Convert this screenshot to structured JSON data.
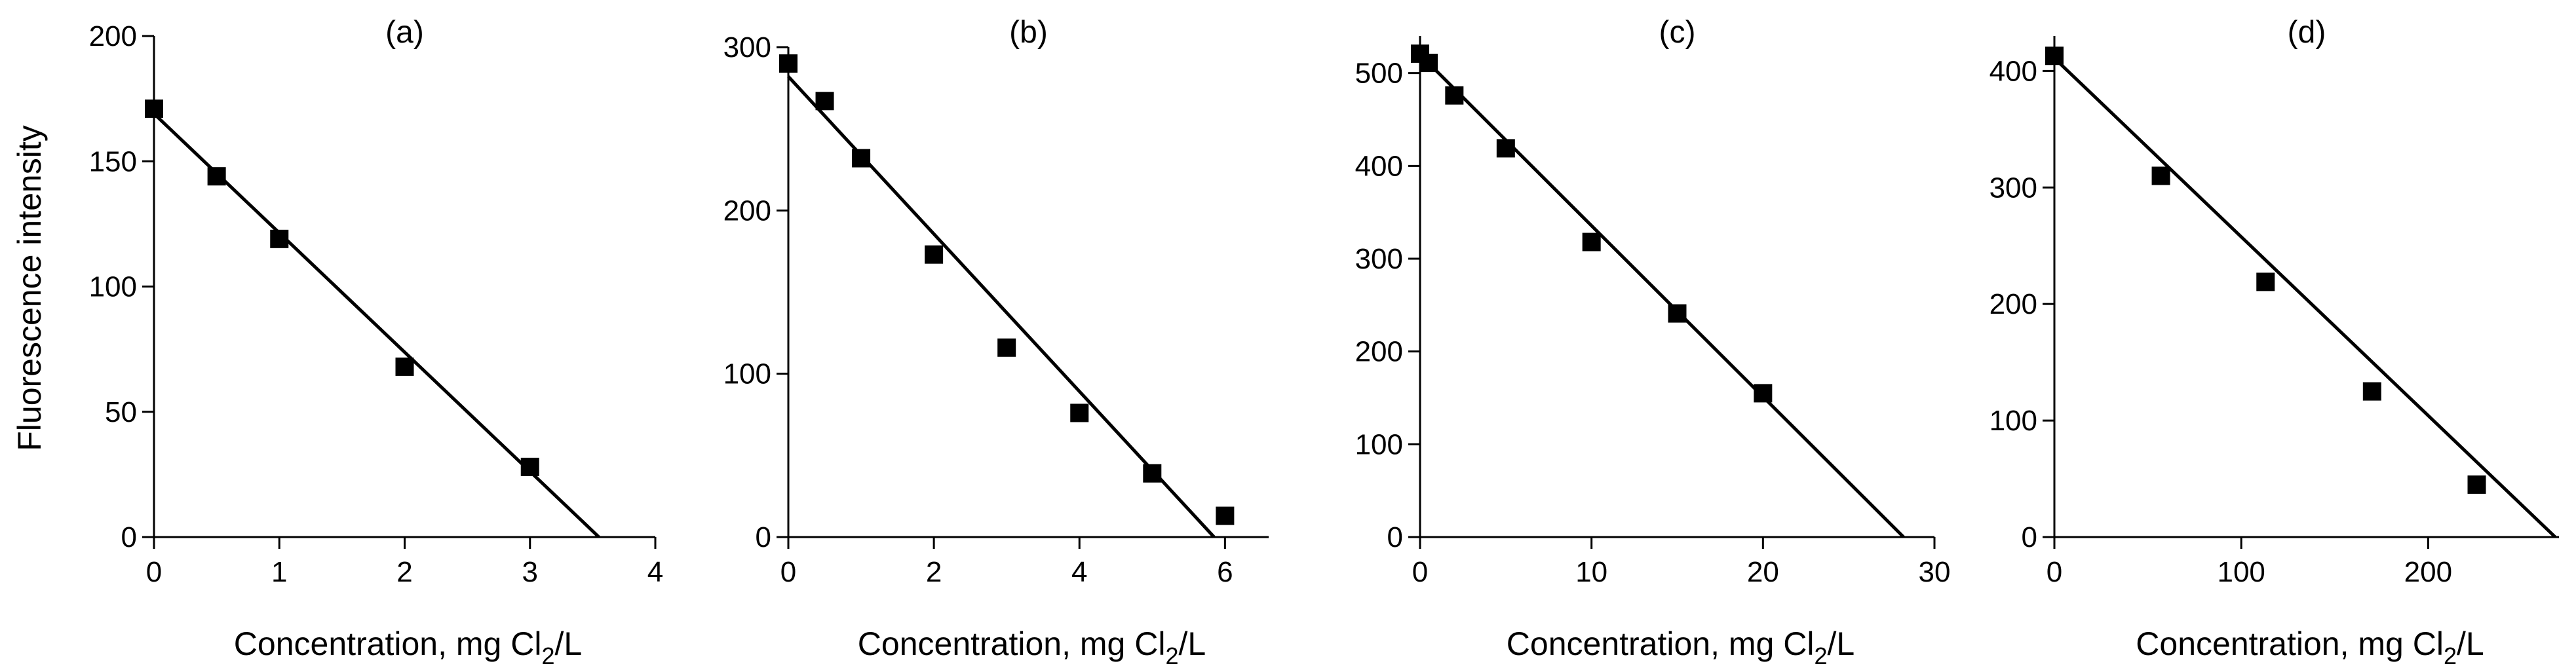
{
  "figure": {
    "ylabel": "Fluorescence intensity",
    "xlabel_main": "Concentration, mg Cl",
    "xlabel_sub": "2",
    "xlabel_tail": "/L"
  },
  "chart_data": [
    {
      "type": "scatter",
      "title": "(a)",
      "xlabel": "Concentration, mg Cl2/L",
      "ylabel": "Fluorescence intensity",
      "xlim": [
        0,
        4
      ],
      "ylim": [
        0,
        200
      ],
      "xticks": [
        0,
        1,
        2,
        3,
        4
      ],
      "yticks": [
        0,
        50,
        100,
        150,
        200
      ],
      "xtick_labels": [
        "0",
        "1",
        "2",
        "3",
        "4"
      ],
      "ytick_labels": [
        "0",
        "50",
        "100",
        "150",
        "200"
      ],
      "series": [
        {
          "name": "data",
          "x": [
            0,
            0.5,
            1,
            2,
            3
          ],
          "y": [
            171,
            144,
            119,
            68,
            28
          ]
        }
      ],
      "fit_line": {
        "x": [
          0,
          3.55
        ],
        "y": [
          169,
          0
        ]
      },
      "grid": false
    },
    {
      "type": "scatter",
      "title": "(b)",
      "xlabel": "Concentration, mg Cl2/L",
      "ylabel": "",
      "xlim": [
        0,
        6.6
      ],
      "ylim": [
        0,
        300
      ],
      "xticks": [
        0,
        2,
        4,
        6
      ],
      "yticks": [
        0,
        100,
        200,
        300
      ],
      "xtick_labels": [
        "0",
        "2",
        "4",
        "6"
      ],
      "ytick_labels": [
        "0",
        "100",
        "200",
        "300"
      ],
      "series": [
        {
          "name": "data",
          "x": [
            0,
            0.5,
            1,
            2,
            3,
            4,
            5,
            6
          ],
          "y": [
            290,
            267,
            232,
            173,
            116,
            76,
            39,
            13
          ]
        }
      ],
      "fit_line": {
        "x": [
          0,
          5.85
        ],
        "y": [
          282,
          0
        ]
      },
      "grid": false
    },
    {
      "type": "scatter",
      "title": "(c)",
      "xlabel": "Concentration, mg Cl2/L",
      "ylabel": "",
      "xlim": [
        0,
        30
      ],
      "ylim": [
        0,
        540
      ],
      "xticks": [
        0,
        10,
        20,
        30
      ],
      "yticks": [
        0,
        100,
        200,
        300,
        400,
        500
      ],
      "xtick_labels": [
        "0",
        "10",
        "20",
        "30"
      ],
      "ytick_labels": [
        "0",
        "100",
        "200",
        "300",
        "400",
        "500"
      ],
      "series": [
        {
          "name": "data",
          "x": [
            0,
            0.5,
            2,
            5,
            10,
            15,
            20
          ],
          "y": [
            521,
            511,
            476,
            419,
            318,
            241,
            155
          ]
        }
      ],
      "fit_line": {
        "x": [
          0,
          28.2
        ],
        "y": [
          520,
          0
        ]
      },
      "grid": false
    },
    {
      "type": "scatter",
      "title": "(d)",
      "xlabel": "Concentration, mg Cl2/L",
      "ylabel": "",
      "xlim": [
        0,
        270
      ],
      "ylim": [
        0,
        430
      ],
      "xticks": [
        0,
        100,
        200
      ],
      "yticks": [
        0,
        100,
        200,
        300,
        400
      ],
      "xtick_labels": [
        "0",
        "100",
        "200"
      ],
      "ytick_labels": [
        "0",
        "100",
        "200",
        "300",
        "400"
      ],
      "series": [
        {
          "name": "data",
          "x": [
            0,
            57,
            113,
            170,
            226
          ],
          "y": [
            413,
            310,
            219,
            125,
            45
          ]
        }
      ],
      "fit_line": {
        "x": [
          0,
          268
        ],
        "y": [
          411,
          0
        ]
      },
      "grid": false
    }
  ]
}
